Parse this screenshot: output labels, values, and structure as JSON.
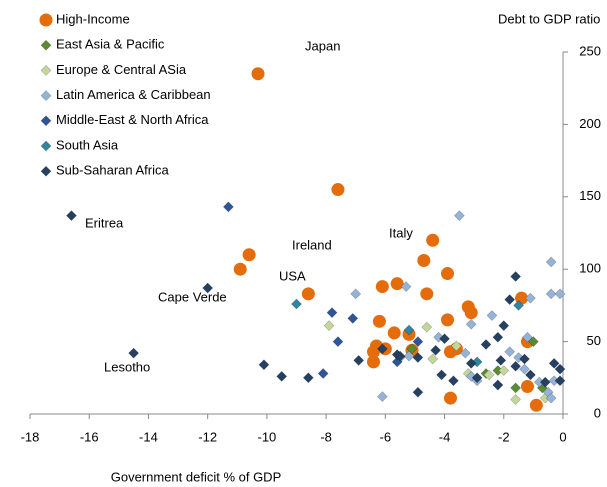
{
  "chart_data": {
    "type": "scatter",
    "y_axis_label": "Debt to GDP ratio",
    "x_axis_label": "Government deficit % of GDP",
    "xlim": [
      -18,
      0
    ],
    "ylim": [
      0,
      250
    ],
    "xticks": [
      -18,
      -16,
      -14,
      -12,
      -10,
      -8,
      -6,
      -4,
      -2,
      0
    ],
    "yticks": [
      0,
      50,
      100,
      150,
      200,
      250
    ],
    "legend": "top-left",
    "annotations": [
      "Japan",
      "Ireland",
      "Italy",
      "USA",
      "Cape Verde",
      "Eritrea",
      "Lesotho"
    ],
    "series": [
      {
        "name": "High-Income",
        "color": "#E46C0A",
        "marker": "circle",
        "x": [
          -10.3,
          -7.6,
          -4.4,
          -10.6,
          -10.9,
          -4.7,
          -3.9,
          -6.1,
          -5.6,
          -4.6,
          -8.6,
          -3.2,
          -3.1,
          -3.9,
          -6.2,
          -5.7,
          -5.2,
          -1.4,
          -1.2,
          -6.3,
          -6.4,
          -6.0,
          -5.1,
          -3.6,
          -3.8,
          -6.4,
          -1.2,
          -0.9,
          -3.8
        ],
        "y": [
          235,
          155,
          120,
          110,
          100,
          106,
          97,
          88,
          90,
          83,
          83,
          74,
          70,
          65,
          64,
          56,
          55,
          80,
          50,
          47,
          43,
          45,
          44,
          45,
          43,
          36,
          19,
          6,
          11
        ]
      },
      {
        "name": "East Asia & Pacific",
        "color": "#5A8A32",
        "marker": "diamond",
        "x": [
          -0.7,
          -1.6,
          -2.6,
          -1.0,
          -5.1,
          -2.2
        ],
        "y": [
          18,
          18,
          28,
          50,
          45,
          30
        ]
      },
      {
        "name": "Europe & Central ASia",
        "color": "#C4D79B",
        "marker": "diamond",
        "x": [
          -7.9,
          -4.6,
          -4.4,
          -1.6,
          -3.2,
          -2.5,
          -2.0,
          -0.6,
          -3.6
        ],
        "y": [
          61,
          60,
          38,
          10,
          28,
          27,
          30,
          11,
          47
        ]
      },
      {
        "name": "Latin America & Caribbean",
        "color": "#95B3D7",
        "marker": "diamond",
        "x": [
          -3.5,
          -0.4,
          -0.4,
          -0.1,
          -7.0,
          -5.3,
          -1.1,
          -3.1,
          -6.1,
          -5.2,
          -4.2,
          -3.3,
          -1.8,
          -1.2,
          -0.8,
          -0.5,
          -0.4,
          -2.4,
          -3.1,
          -2.9,
          -1.5,
          -1.3,
          -2.2,
          -5.5,
          -0.3
        ],
        "y": [
          137,
          105,
          83,
          83,
          83,
          88,
          80,
          62,
          12,
          40,
          53,
          42,
          43,
          53,
          22,
          15,
          11,
          68,
          26,
          23,
          39,
          31,
          20,
          39,
          23
        ]
      },
      {
        "name": "Middle-East & North Africa",
        "color": "#2E5597",
        "marker": "diamond",
        "x": [
          -11.3,
          -7.8,
          -7.1,
          -7.6,
          -8.1,
          -4.9,
          -5.6
        ],
        "y": [
          143,
          70,
          66,
          50,
          28,
          50,
          36
        ]
      },
      {
        "name": "South Asia",
        "color": "#31859C",
        "marker": "diamond",
        "x": [
          -9.0,
          -5.2,
          -1.5,
          -2.9
        ],
        "y": [
          76,
          58,
          75,
          36
        ]
      },
      {
        "name": "Sub-Saharan Africa",
        "color": "#254061",
        "marker": "diamond",
        "x": [
          -16.6,
          -12.0,
          -14.5,
          -10.1,
          -9.5,
          -8.6,
          -6.9,
          -6.1,
          -5.6,
          -5.5,
          -4.9,
          -4.1,
          -4.9,
          -3.1,
          -3.7,
          -2.9,
          -2.2,
          -1.6,
          -1.8,
          -2.0,
          -2.2,
          -1.3,
          -0.3,
          -0.1,
          -0.1,
          -1.6,
          -2.6,
          -1.1,
          -0.6,
          -4.3,
          -4.0,
          -2.1
        ],
        "y": [
          137,
          87,
          42,
          34,
          26,
          25,
          37,
          45,
          41,
          40,
          39,
          27,
          15,
          35,
          23,
          25,
          20,
          95,
          79,
          61,
          53,
          38,
          35,
          31,
          23,
          33,
          48,
          27,
          22,
          44,
          52,
          37
        ]
      }
    ]
  }
}
